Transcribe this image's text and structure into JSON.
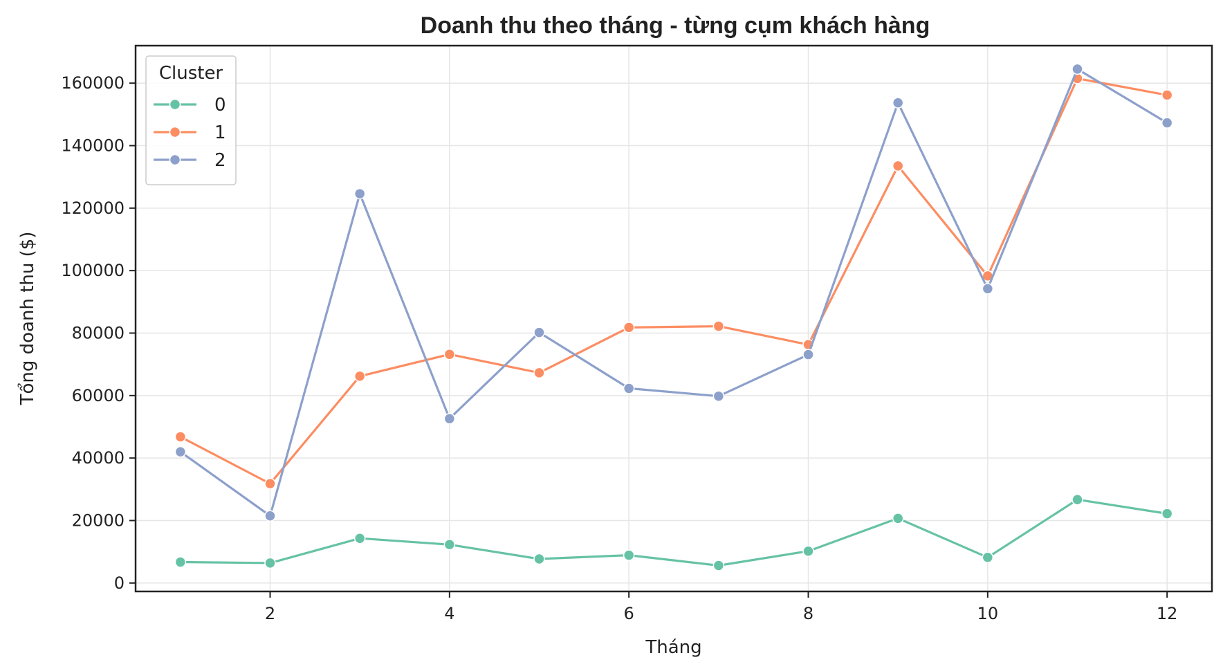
{
  "chart_data": {
    "type": "line",
    "title": "Doanh thu theo tháng - từng cụm khách hàng",
    "xlabel": "Tháng",
    "ylabel": "Tổng doanh thu ($)",
    "xlim": [
      0.5,
      12.5
    ],
    "ylim": [
      -2700,
      172000
    ],
    "x_ticks": [
      2,
      4,
      6,
      8,
      10,
      12
    ],
    "y_ticks": [
      0,
      20000,
      40000,
      60000,
      80000,
      100000,
      120000,
      140000,
      160000
    ],
    "grid": true,
    "legend": {
      "title": "Cluster",
      "placement": "top-left"
    },
    "x": [
      1,
      2,
      3,
      4,
      5,
      6,
      7,
      8,
      9,
      10,
      11,
      12
    ],
    "series": [
      {
        "name": "0",
        "color": "#66c2a5",
        "values": [
          6700,
          6400,
          14300,
          12300,
          7700,
          8900,
          5600,
          10200,
          20700,
          8200,
          26700,
          22200
        ]
      },
      {
        "name": "1",
        "color": "#fc8d62",
        "values": [
          46800,
          31800,
          66200,
          73200,
          67300,
          81800,
          82200,
          76300,
          133500,
          98300,
          161500,
          156200
        ]
      },
      {
        "name": "2",
        "color": "#8da0cb",
        "values": [
          42000,
          21500,
          124600,
          52600,
          80200,
          62300,
          59800,
          73100,
          153700,
          94200,
          164500,
          147300
        ]
      }
    ]
  }
}
